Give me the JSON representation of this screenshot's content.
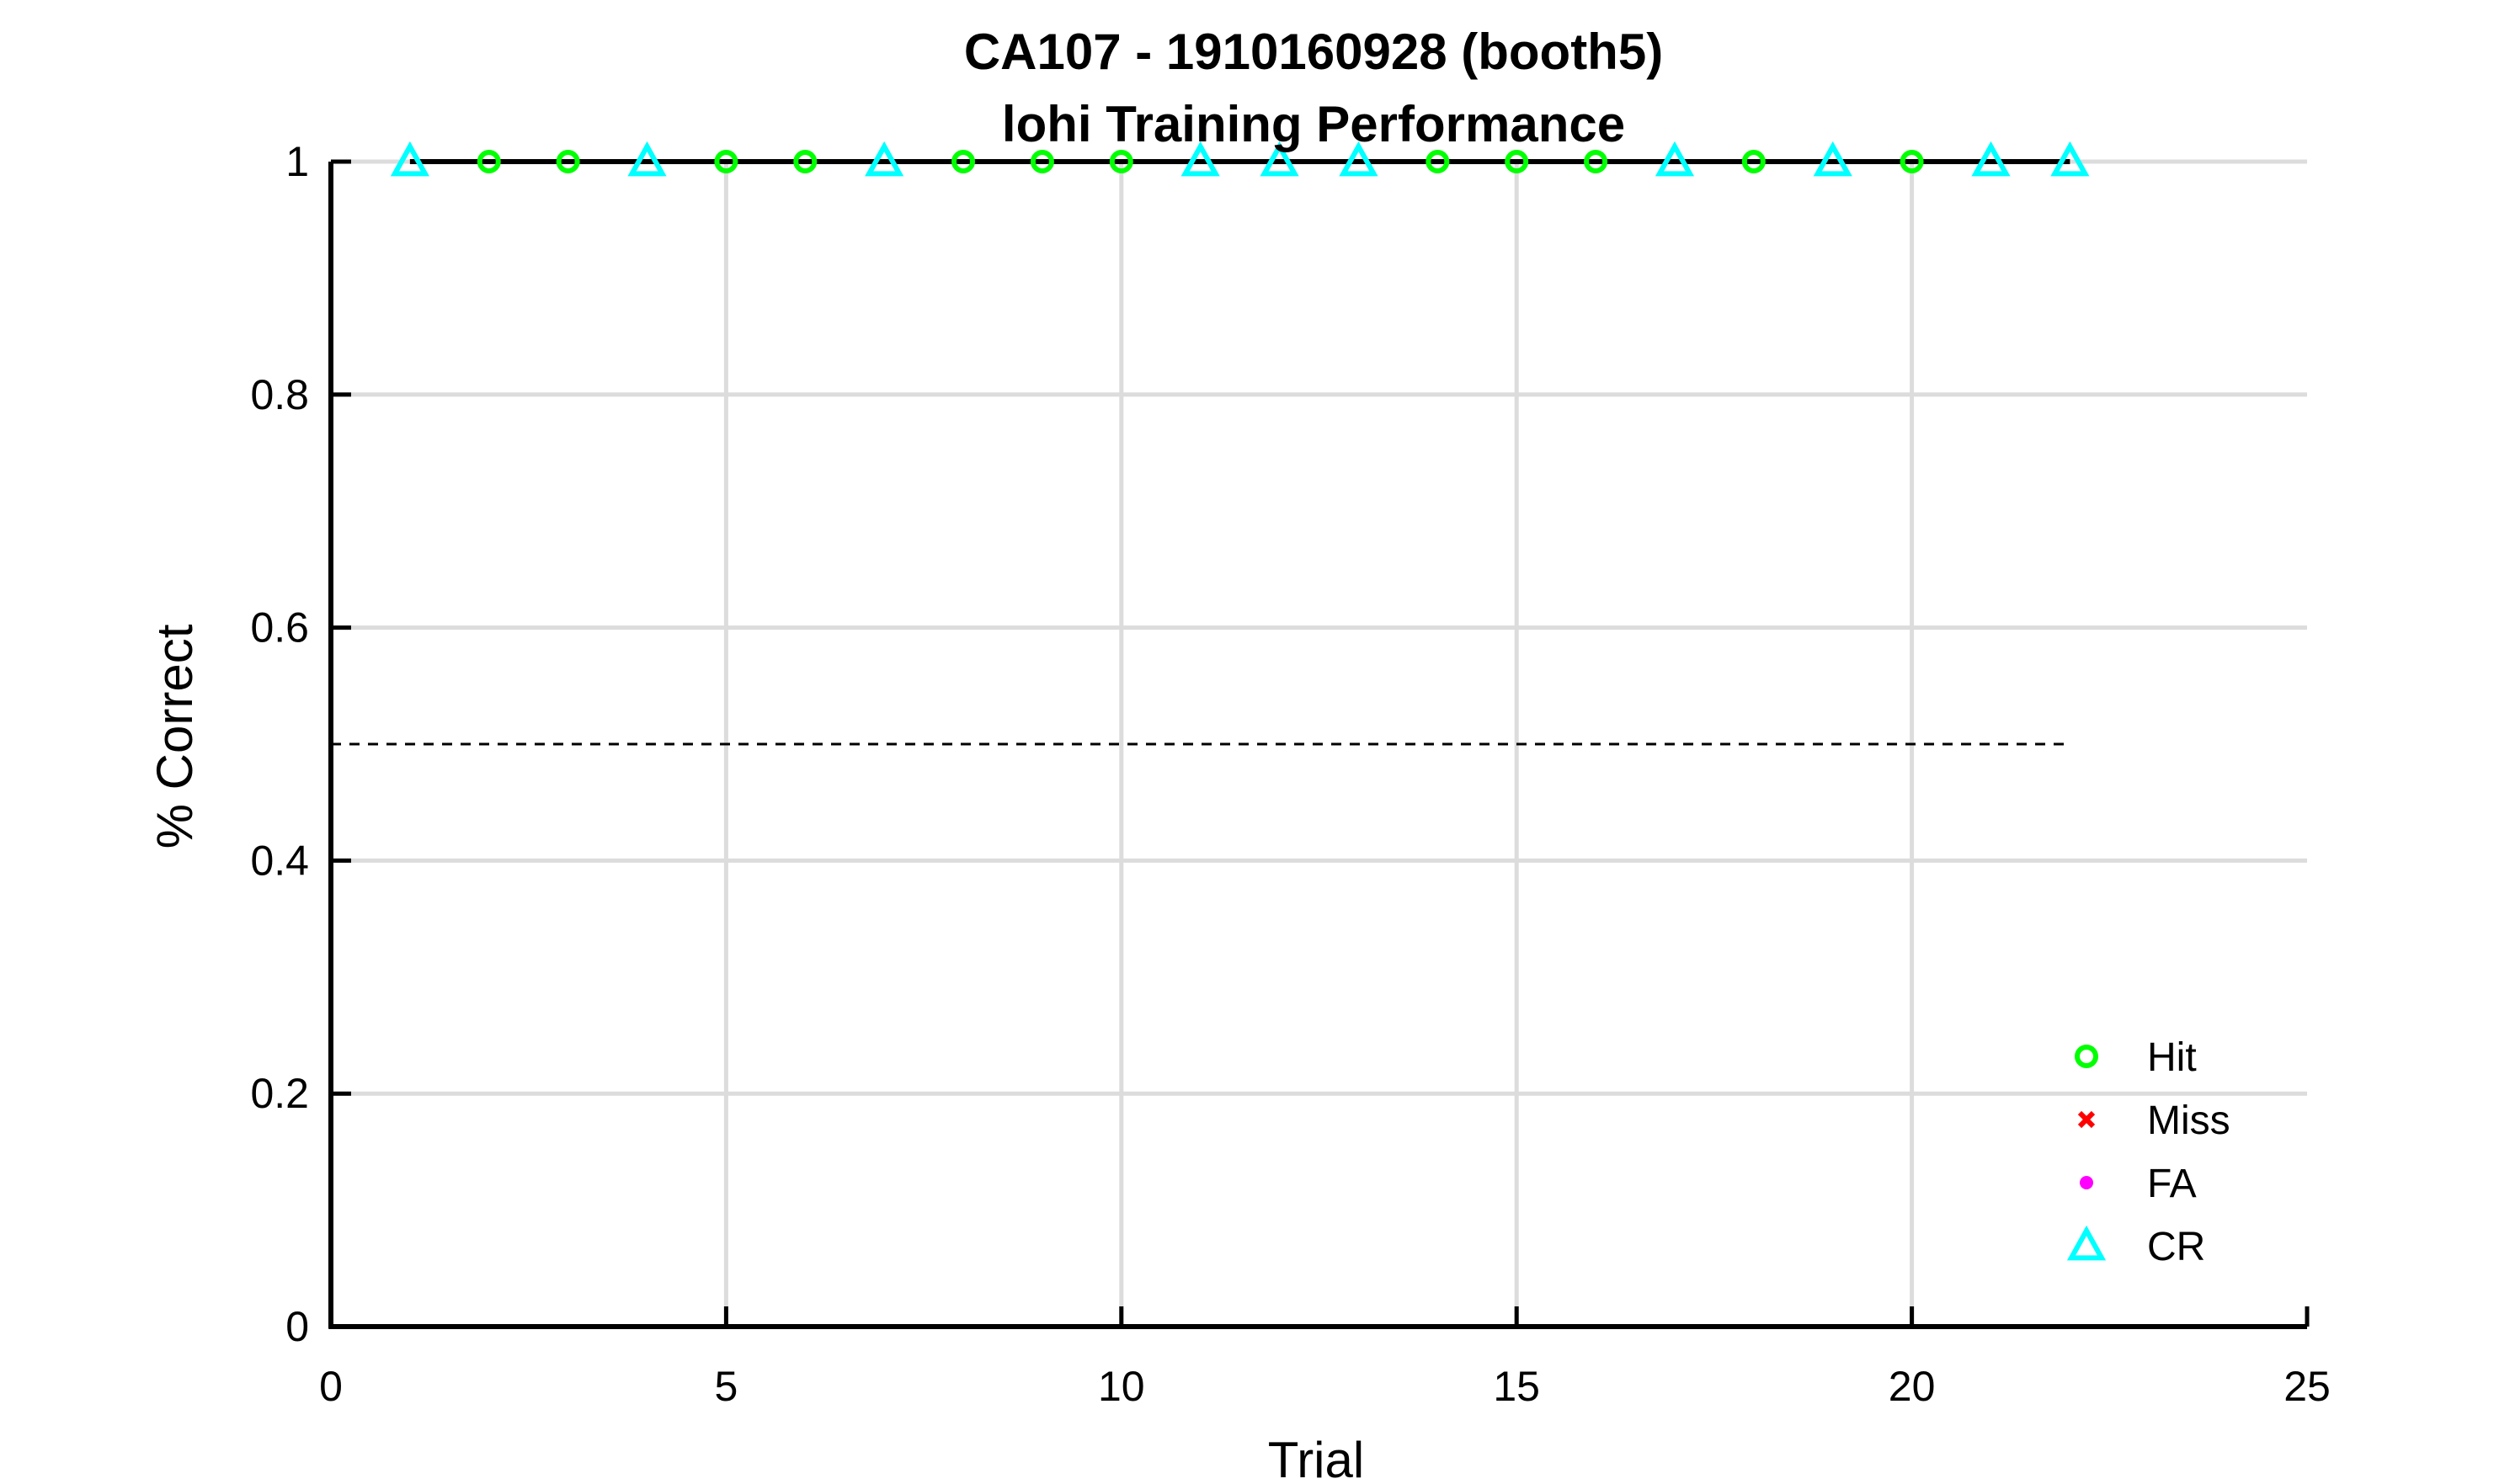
{
  "chart_data": {
    "type": "line",
    "title": "CA107 - 1910160928 (booth5)",
    "subtitle": "lohi Training Performance",
    "xlabel": "Trial",
    "ylabel": "% Correct",
    "xlim": [
      0,
      25
    ],
    "ylim": [
      0,
      1
    ],
    "xticks": [
      "0",
      "5",
      "10",
      "15",
      "20",
      "25"
    ],
    "yticks": [
      "0",
      "0.2",
      "0.4",
      "0.6",
      "0.8",
      "1"
    ],
    "grid": true,
    "legend_position": "bottom-right",
    "performance_line": {
      "x": [
        1,
        2,
        3,
        4,
        5,
        6,
        7,
        8,
        9,
        10,
        11,
        12,
        13,
        14,
        15,
        16,
        17,
        18,
        19,
        20,
        21,
        22
      ],
      "y": [
        1,
        1,
        1,
        1,
        1,
        1,
        1,
        1,
        1,
        1,
        1,
        1,
        1,
        1,
        1,
        1,
        1,
        1,
        1,
        1,
        1,
        1
      ],
      "color": "#000000"
    },
    "chance_line": {
      "x": [
        0,
        22
      ],
      "y": 0.5,
      "color": "#000000",
      "style": "dashed"
    },
    "series": [
      {
        "name": "Hit",
        "marker": "circle",
        "color": "#00ff00",
        "x": [
          2,
          3,
          5,
          6,
          8,
          9,
          10,
          14,
          15,
          16,
          18,
          20
        ],
        "y": [
          1,
          1,
          1,
          1,
          1,
          1,
          1,
          1,
          1,
          1,
          1,
          1
        ]
      },
      {
        "name": "Miss",
        "marker": "x",
        "color": "#ff0000",
        "x": [],
        "y": []
      },
      {
        "name": "FA",
        "marker": "dot",
        "color": "#ff00ff",
        "x": [],
        "y": []
      },
      {
        "name": "CR",
        "marker": "triangle",
        "color": "#00ffff",
        "x": [
          1,
          4,
          7,
          11,
          12,
          13,
          17,
          19,
          21,
          22
        ],
        "y": [
          1,
          1,
          1,
          1,
          1,
          1,
          1,
          1,
          1,
          1
        ]
      }
    ]
  }
}
